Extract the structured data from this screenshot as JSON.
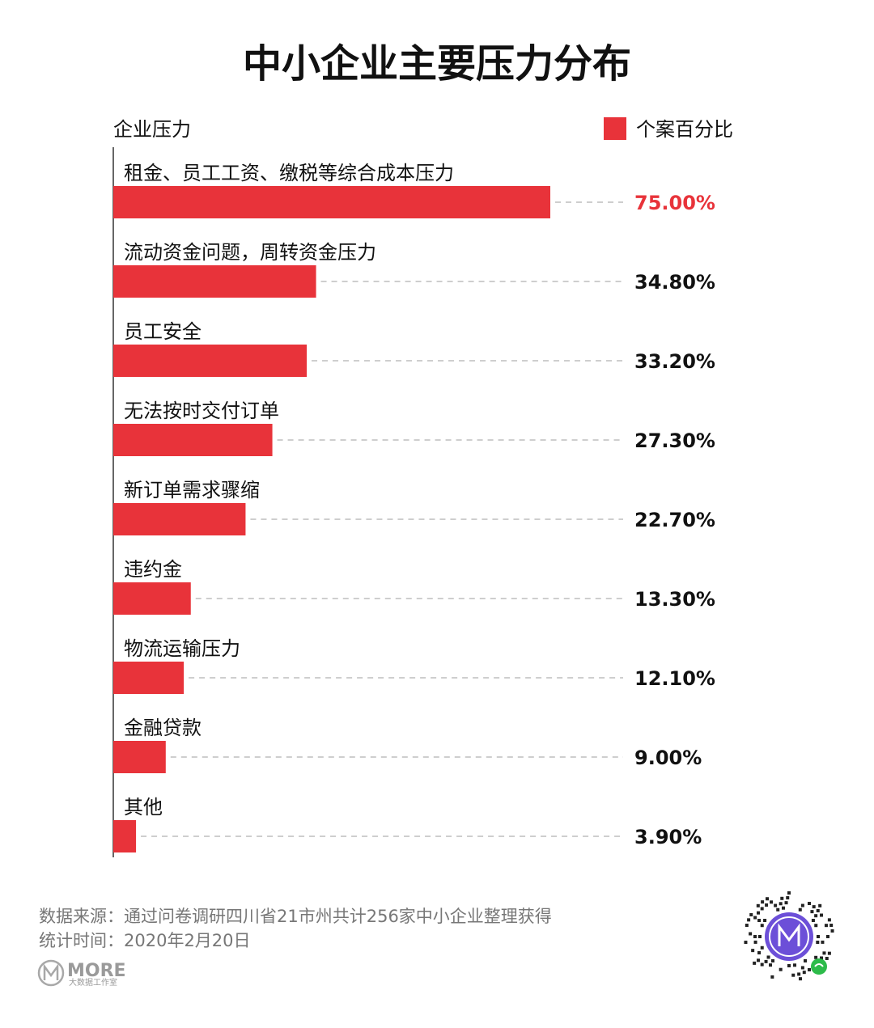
{
  "chart_data": {
    "type": "bar",
    "orientation": "horizontal",
    "title": "中小企业主要压力分布",
    "ylabel": "企业压力",
    "legend": {
      "position": "top-right",
      "entries": [
        {
          "name": "个案百分比",
          "color": "#e8333a"
        }
      ]
    },
    "xlim": [
      0,
      100
    ],
    "grid": false,
    "categories": [
      "租金、员工工资、缴税等综合成本压力",
      "流动资金问题，周转资金压力",
      "员工安全",
      "无法按时交付订单",
      "新订单需求骤缩",
      "违约金",
      "物流运输压力",
      "金融贷款",
      "其他"
    ],
    "series": [
      {
        "name": "个案百分比",
        "values": [
          75.0,
          34.8,
          33.2,
          27.3,
          22.7,
          13.3,
          12.1,
          9.0,
          3.9
        ],
        "labels": [
          "75.00%",
          "34.80%",
          "33.20%",
          "27.30%",
          "22.70%",
          "13.30%",
          "12.10%",
          "9.00%",
          "3.90%"
        ]
      }
    ],
    "highlight_index": 0,
    "colors": {
      "bar": "#e8333a",
      "highlight_label": "#e8333a",
      "label": "#111111"
    }
  },
  "footer": {
    "source": "数据来源：通过问卷调研四川省21市州共计256家中小企业整理获得",
    "time": "统计时间：2020年2月20日",
    "brand": "MORE",
    "brand_sub": "大数据工作室"
  },
  "icons": {
    "brand_logo": "more-logo-icon",
    "qr_code": "qr-code-icon"
  }
}
